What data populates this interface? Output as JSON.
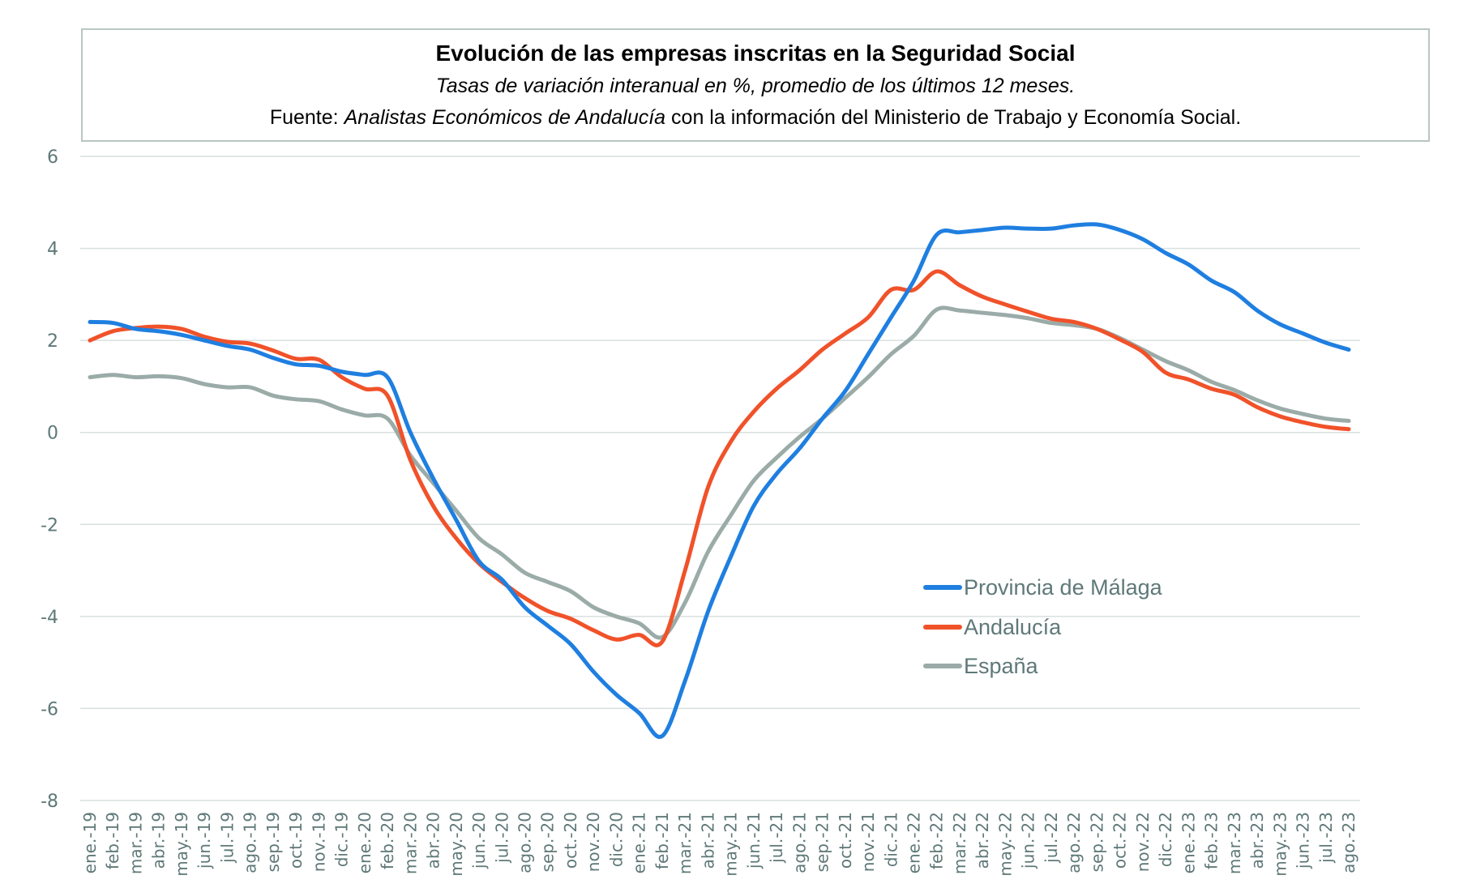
{
  "chart_data": {
    "type": "line",
    "title": "Evolución de las empresas inscritas en la Seguridad Social",
    "subtitle": "Tasas de variación interanual en %, promedio de los últimos 12 meses.",
    "source_prefix": "Fuente: ",
    "source_italic": "Analistas Económicos de Andalucía",
    "source_suffix": " con la información del Ministerio de Trabajo y Economía Social.",
    "xlabel": "",
    "ylabel": "",
    "ylim": [
      -8,
      6
    ],
    "yticks": [
      "6",
      "4",
      "2",
      "0",
      "-2",
      "-4",
      "-6",
      "-8"
    ],
    "ytick_values": [
      6,
      4,
      2,
      0,
      -2,
      -4,
      -6,
      -8
    ],
    "grid": true,
    "legend_position": "center-right",
    "categories": [
      "ene.-19",
      "feb.-19",
      "mar.-19",
      "abr.-19",
      "may.-19",
      "jun.-19",
      "jul.-19",
      "ago.-19",
      "sep.-19",
      "oct.-19",
      "nov.-19",
      "dic.-19",
      "ene.-20",
      "feb.-20",
      "mar.-20",
      "abr.-20",
      "may.-20",
      "jun.-20",
      "jul.-20",
      "ago.-20",
      "sep.-20",
      "oct.-20",
      "nov.-20",
      "dic.-20",
      "ene.-21",
      "feb.-21",
      "mar.-21",
      "abr.-21",
      "may.-21",
      "jun.-21",
      "jul.-21",
      "ago.-21",
      "sep.-21",
      "oct.-21",
      "nov.-21",
      "dic.-21",
      "ene.-22",
      "feb.-22",
      "mar.-22",
      "abr.-22",
      "may.-22",
      "jun.-22",
      "jul.-22",
      "ago.-22",
      "sep.-22",
      "oct.-22",
      "nov.-22",
      "dic.-22",
      "ene.-23",
      "feb.-23",
      "mar.-23",
      "abr.-23",
      "may.-23",
      "jun.-23",
      "jul.-23",
      "ago.-23"
    ],
    "series": [
      {
        "name": "Provincia de Málaga",
        "color": "#1f7fe0",
        "values": [
          2.4,
          2.38,
          2.25,
          2.2,
          2.12,
          2.0,
          1.88,
          1.8,
          1.62,
          1.48,
          1.45,
          1.32,
          1.25,
          1.2,
          0.0,
          -1.0,
          -1.9,
          -2.8,
          -3.2,
          -3.8,
          -4.2,
          -4.6,
          -5.2,
          -5.7,
          -6.1,
          -6.6,
          -5.4,
          -3.9,
          -2.7,
          -1.6,
          -0.9,
          -0.35,
          0.3,
          0.9,
          1.7,
          2.5,
          3.3,
          4.3,
          4.35,
          4.4,
          4.45,
          4.43,
          4.43,
          4.5,
          4.52,
          4.4,
          4.2,
          3.9,
          3.65,
          3.3,
          3.05,
          2.65,
          2.35,
          2.15,
          1.95,
          1.8
        ]
      },
      {
        "name": "Andalucía",
        "color": "#f0522a",
        "values": [
          2.0,
          2.2,
          2.27,
          2.3,
          2.25,
          2.08,
          1.97,
          1.93,
          1.78,
          1.6,
          1.58,
          1.2,
          0.95,
          0.8,
          -0.6,
          -1.6,
          -2.3,
          -2.85,
          -3.25,
          -3.6,
          -3.88,
          -4.05,
          -4.3,
          -4.5,
          -4.4,
          -4.55,
          -3.0,
          -1.2,
          -0.2,
          0.45,
          0.95,
          1.35,
          1.8,
          2.15,
          2.5,
          3.1,
          3.1,
          3.5,
          3.2,
          2.95,
          2.78,
          2.62,
          2.47,
          2.4,
          2.25,
          2.02,
          1.75,
          1.3,
          1.15,
          0.95,
          0.82,
          0.55,
          0.35,
          0.22,
          0.12,
          0.07
        ]
      },
      {
        "name": "España",
        "color": "#9aaba8",
        "values": [
          1.2,
          1.25,
          1.2,
          1.22,
          1.18,
          1.05,
          0.98,
          0.98,
          0.8,
          0.72,
          0.68,
          0.5,
          0.37,
          0.3,
          -0.5,
          -1.1,
          -1.7,
          -2.3,
          -2.65,
          -3.05,
          -3.25,
          -3.45,
          -3.8,
          -4.0,
          -4.15,
          -4.45,
          -3.7,
          -2.6,
          -1.8,
          -1.05,
          -0.55,
          -0.1,
          0.3,
          0.75,
          1.2,
          1.7,
          2.1,
          2.67,
          2.65,
          2.6,
          2.55,
          2.48,
          2.38,
          2.33,
          2.25,
          2.05,
          1.8,
          1.55,
          1.35,
          1.1,
          0.92,
          0.7,
          0.52,
          0.4,
          0.3,
          0.25
        ]
      }
    ]
  }
}
